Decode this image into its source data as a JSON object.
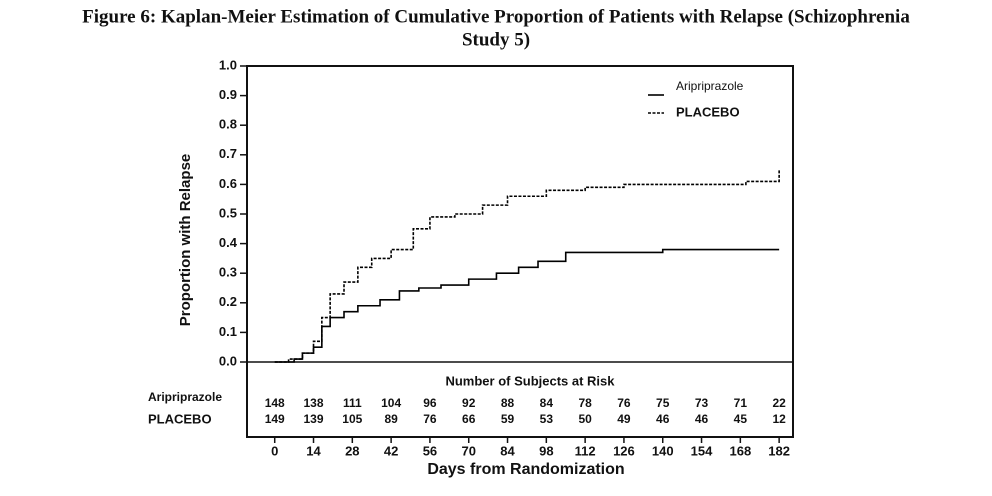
{
  "chart_data": {
    "type": "step",
    "title": "Figure 6: Kaplan-Meier Estimation of Cumulative Proportion of Patients with Relapse (Schizophrenia Study 5)",
    "y_label": "Proportion with Relapse",
    "x_label": "Days from Randomization",
    "xlim": [
      -10,
      187
    ],
    "ylim": [
      0,
      1
    ],
    "xticks": [
      0,
      14,
      28,
      42,
      56,
      70,
      84,
      98,
      112,
      126,
      140,
      154,
      168,
      182
    ],
    "yticks": [
      {
        "value": 0,
        "label": "0.0"
      },
      0.1,
      0.2,
      0.3,
      0.4,
      0.5,
      0.6,
      0.7,
      0.8,
      0.9,
      {
        "value": 1,
        "label": "1.0"
      }
    ],
    "legend": "upper right",
    "series": [
      {
        "name": "Aripriprazole",
        "color": "#000000",
        "dash": "solid",
        "x": [
          0,
          7,
          10,
          14,
          17,
          20,
          25,
          30,
          38,
          45,
          52,
          60,
          70,
          80,
          88,
          95,
          105,
          140,
          182
        ],
        "values": [
          0,
          0.01,
          0.03,
          0.05,
          0.12,
          0.15,
          0.17,
          0.19,
          0.21,
          0.24,
          0.25,
          0.26,
          0.28,
          0.3,
          0.32,
          0.34,
          0.37,
          0.38,
          0.38
        ]
      },
      {
        "name": "PLACEBO",
        "color": "#000000",
        "dash": "dashed",
        "x": [
          0,
          5,
          10,
          14,
          17,
          20,
          25,
          30,
          35,
          42,
          50,
          56,
          65,
          75,
          84,
          98,
          112,
          126,
          150,
          170,
          180,
          182
        ],
        "values": [
          0,
          0.01,
          0.03,
          0.07,
          0.15,
          0.23,
          0.27,
          0.32,
          0.35,
          0.38,
          0.45,
          0.49,
          0.5,
          0.53,
          0.56,
          0.58,
          0.59,
          0.6,
          0.6,
          0.61,
          0.61,
          0.65
        ]
      }
    ],
    "risk_table": {
      "title": "Number of Subjects at Risk",
      "rows": [
        {
          "label": "Aripriprazole",
          "counts": [
            148,
            138,
            111,
            104,
            96,
            92,
            88,
            84,
            78,
            76,
            75,
            73,
            71,
            22
          ]
        },
        {
          "label": "PLACEBO",
          "counts": [
            149,
            139,
            105,
            89,
            76,
            66,
            59,
            53,
            50,
            49,
            46,
            46,
            45,
            12
          ]
        }
      ]
    }
  }
}
